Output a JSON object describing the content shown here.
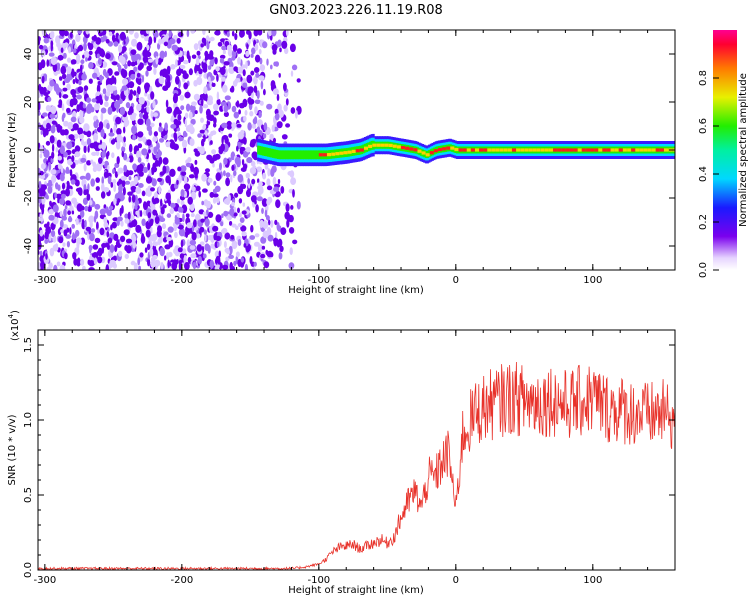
{
  "figure": {
    "title": "GN03.2023.226.11.19.R08",
    "colors": {
      "snr_line": "#e8322a",
      "spectrum_noise": "#6a00e8",
      "frame": "#000000"
    }
  },
  "chart_data": [
    {
      "type": "heatmap",
      "title": "GN03.2023.226.11.19.R08",
      "xlabel": "Height of straight line (km)",
      "ylabel": "Frequency (Hz)",
      "xlim": [
        -305,
        160
      ],
      "ylim": [
        -50,
        50
      ],
      "xticks": [
        -300,
        -200,
        -100,
        0,
        100
      ],
      "yticks": [
        -40,
        -20,
        0,
        20,
        40
      ],
      "colorbar": {
        "label": "Normalized spectral amplitude",
        "range": [
          0,
          1
        ],
        "ticks": [
          "0.0",
          "0.2",
          "0.4",
          "0.6",
          "0.8"
        ],
        "colormap": "rainbow (purple → blue → cyan → green → yellow → red)"
      },
      "features": [
        {
          "region": "broadband noise",
          "x_range": [
            -305,
            -120
          ],
          "y_range": [
            -50,
            50
          ],
          "amplitude": "low (purple)"
        },
        {
          "region": "signal trace",
          "x_range": [
            -145,
            160
          ],
          "frequency_hz": 0,
          "amplitude": "high (red/yellow core)"
        }
      ],
      "trace": {
        "x": [
          -145,
          -130,
          -110,
          -95,
          -80,
          -70,
          -62,
          -50,
          -40,
          -30,
          -22,
          -15,
          -5,
          0,
          20,
          50,
          80,
          110,
          140,
          160
        ],
        "y": [
          0,
          -2,
          -2,
          -2,
          -1,
          0,
          2,
          2,
          1,
          0,
          -2,
          0,
          1,
          0,
          0,
          0,
          0,
          0,
          0,
          0
        ]
      }
    },
    {
      "type": "line",
      "xlabel": "Height of straight line (km)",
      "ylabel": "SNR (10 * v/v)",
      "y_multiplier": "(x10^4)",
      "xlim": [
        -305,
        160
      ],
      "ylim": [
        0,
        1.6
      ],
      "xticks": [
        -300,
        -200,
        -100,
        0,
        100
      ],
      "yticks": [
        "0.0",
        "0.5",
        "1.0",
        "1.5"
      ],
      "series": [
        {
          "x": [
            -305,
            -280,
            -250,
            -220,
            -200,
            -180,
            -150,
            -120,
            -110,
            -100,
            -95,
            -90,
            -85,
            -80,
            -75,
            -70,
            -65,
            -60,
            -55,
            -50,
            -45,
            -40,
            -35,
            -30,
            -25,
            -20,
            -15,
            -10,
            -5,
            0,
            5,
            10,
            15,
            20,
            25,
            30,
            40,
            50,
            60,
            70,
            80,
            90,
            100,
            110,
            120,
            130,
            140,
            150,
            160
          ],
          "values": [
            0.01,
            0.01,
            0.01,
            0.01,
            0.01,
            0.01,
            0.01,
            0.01,
            0.02,
            0.04,
            0.07,
            0.12,
            0.15,
            0.16,
            0.17,
            0.14,
            0.16,
            0.18,
            0.2,
            0.18,
            0.22,
            0.35,
            0.45,
            0.52,
            0.42,
            0.62,
            0.62,
            0.72,
            0.78,
            0.4,
            0.9,
            0.98,
            1.05,
            1.08,
            1.1,
            1.12,
            1.15,
            1.13,
            1.12,
            1.14,
            1.1,
            1.12,
            1.15,
            1.08,
            1.07,
            1.05,
            1.03,
            1.05,
            1.0
          ]
        }
      ]
    }
  ],
  "annotations": {
    "snr_multiplier_base": "(x10",
    "snr_multiplier_exp": "4",
    "snr_multiplier_close": ")"
  }
}
